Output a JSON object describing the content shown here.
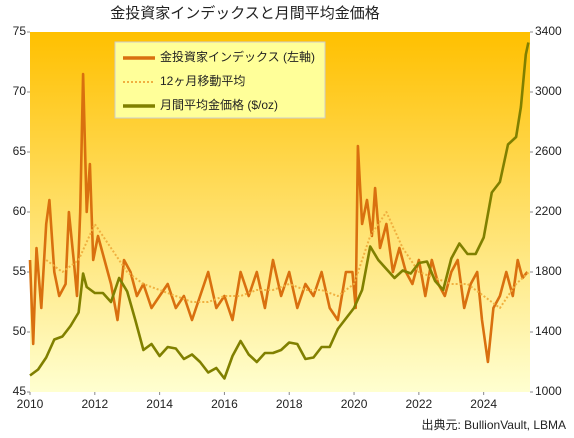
{
  "chart_data": {
    "type": "line",
    "title": "金投資家インデックスと月間平均金価格",
    "source": "出典元: BullionVault, LBMA",
    "xlim": [
      2010,
      2025.43
    ],
    "xticks": [
      2010,
      2012,
      2014,
      2016,
      2018,
      2020,
      2022,
      2024
    ],
    "ylim": [
      45,
      75
    ],
    "yticks": [
      45,
      50,
      55,
      60,
      65,
      70,
      75
    ],
    "y2lim": [
      1000,
      3400
    ],
    "y2ticks": [
      1000,
      1400,
      1800,
      2200,
      2600,
      3000,
      3400
    ],
    "series": [
      {
        "name": "金投資家インデックス (左軸)",
        "color": "#d9700f",
        "style": "solid",
        "x": [
          2010.0,
          2010.1,
          2010.2,
          2010.35,
          2010.5,
          2010.6,
          2010.75,
          2010.9,
          2011.1,
          2011.2,
          2011.35,
          2011.45,
          2011.55,
          2011.64,
          2011.75,
          2011.85,
          2011.95,
          2012.1,
          2012.3,
          2012.5,
          2012.7,
          2012.9,
          2013.1,
          2013.3,
          2013.5,
          2013.75,
          2014.0,
          2014.25,
          2014.5,
          2014.75,
          2015.0,
          2015.25,
          2015.5,
          2015.75,
          2016.0,
          2016.25,
          2016.5,
          2016.75,
          2017.0,
          2017.25,
          2017.5,
          2017.75,
          2018.0,
          2018.25,
          2018.5,
          2018.75,
          2019.0,
          2019.25,
          2019.5,
          2019.75,
          2019.95,
          2020.05,
          2020.12,
          2020.25,
          2020.4,
          2020.55,
          2020.65,
          2020.8,
          2021.0,
          2021.2,
          2021.4,
          2021.6,
          2021.8,
          2022.0,
          2022.2,
          2022.4,
          2022.6,
          2022.8,
          2023.0,
          2023.2,
          2023.4,
          2023.6,
          2023.8,
          2023.95,
          2024.13,
          2024.3,
          2024.5,
          2024.7,
          2024.9,
          2025.05,
          2025.2,
          2025.35
        ],
        "values": [
          56,
          49,
          57,
          52,
          59,
          61,
          55,
          53,
          54,
          60,
          56,
          53,
          60,
          71.5,
          60,
          64,
          56,
          58,
          56,
          54,
          51,
          56,
          55,
          53,
          54,
          52,
          53,
          54,
          52,
          53,
          51,
          53,
          55,
          52,
          53,
          51,
          55,
          53,
          55,
          52,
          56,
          53,
          55,
          52,
          54,
          53,
          55,
          52,
          51,
          55,
          55,
          52,
          65.5,
          59,
          61,
          58,
          62,
          57,
          59,
          55,
          57,
          55,
          54,
          56,
          53,
          56,
          54,
          53,
          55,
          56,
          52,
          54,
          55,
          51,
          47.5,
          52,
          53,
          55,
          53,
          56,
          54.5,
          55
        ]
      },
      {
        "name": "12ヶ月移動平均",
        "color": "#f0b040",
        "style": "dotted",
        "x": [
          2010.5,
          2011.0,
          2011.5,
          2012.0,
          2012.5,
          2013.0,
          2013.5,
          2014.0,
          2014.5,
          2015.0,
          2015.5,
          2016.0,
          2016.5,
          2017.0,
          2017.5,
          2018.0,
          2018.5,
          2019.0,
          2019.5,
          2020.0,
          2020.5,
          2021.0,
          2021.5,
          2022.0,
          2022.5,
          2023.0,
          2023.5,
          2024.0,
          2024.5,
          2025.0,
          2025.4
        ],
        "values": [
          56,
          55,
          56,
          59,
          57,
          55,
          54,
          53.5,
          53,
          52.5,
          52.5,
          53,
          53,
          53.5,
          53.5,
          54,
          53.5,
          53.5,
          53,
          54,
          58,
          60,
          57,
          55,
          54.5,
          54,
          54,
          53,
          52,
          54,
          55
        ]
      },
      {
        "name": "月間平均金価格 ($/oz)",
        "color": "#808000",
        "style": "solid",
        "axis": "y2",
        "x": [
          2010.0,
          2010.25,
          2010.5,
          2010.75,
          2011.0,
          2011.25,
          2011.5,
          2011.64,
          2011.75,
          2012.0,
          2012.25,
          2012.5,
          2012.75,
          2013.0,
          2013.25,
          2013.5,
          2013.75,
          2014.0,
          2014.25,
          2014.5,
          2014.75,
          2015.0,
          2015.25,
          2015.5,
          2015.75,
          2016.0,
          2016.25,
          2016.5,
          2016.75,
          2017.0,
          2017.25,
          2017.5,
          2017.75,
          2018.0,
          2018.25,
          2018.5,
          2018.75,
          2019.0,
          2019.25,
          2019.5,
          2019.75,
          2020.0,
          2020.25,
          2020.5,
          2020.75,
          2021.0,
          2021.25,
          2021.5,
          2021.75,
          2022.0,
          2022.25,
          2022.5,
          2022.75,
          2023.0,
          2023.25,
          2023.5,
          2023.75,
          2024.0,
          2024.25,
          2024.5,
          2024.75,
          2025.0,
          2025.15,
          2025.3,
          2025.38
        ],
        "values": [
          1110,
          1150,
          1230,
          1350,
          1370,
          1440,
          1530,
          1790,
          1700,
          1660,
          1660,
          1600,
          1760,
          1670,
          1480,
          1280,
          1320,
          1240,
          1300,
          1290,
          1220,
          1250,
          1200,
          1130,
          1160,
          1090,
          1240,
          1340,
          1250,
          1200,
          1260,
          1260,
          1280,
          1330,
          1320,
          1220,
          1230,
          1300,
          1300,
          1420,
          1490,
          1560,
          1680,
          1970,
          1880,
          1820,
          1760,
          1810,
          1790,
          1860,
          1870,
          1740,
          1680,
          1890,
          1990,
          1920,
          1920,
          2030,
          2330,
          2400,
          2650,
          2700,
          2900,
          3250,
          3330
        ]
      }
    ]
  }
}
